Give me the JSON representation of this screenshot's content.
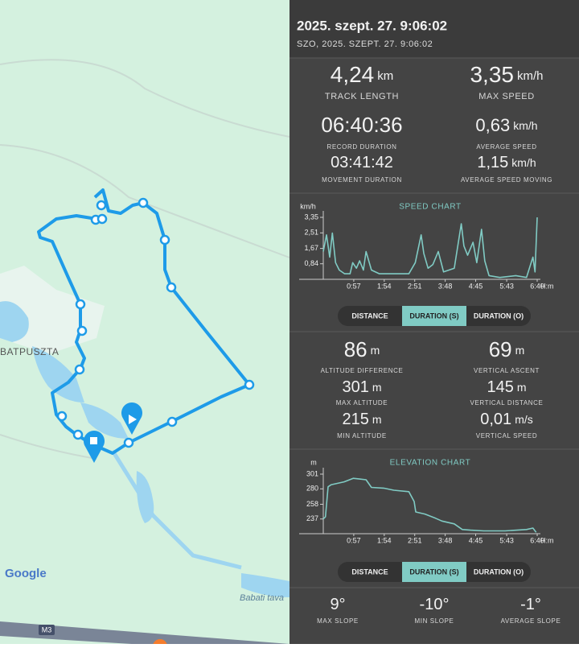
{
  "map": {
    "place_label": "BATPUSZTA",
    "lake_label": "Babati tava",
    "road_label": "M3",
    "attribution": "Google"
  },
  "header": {
    "title": "2025. szept. 27. 9:06:02",
    "subtitle": "SZO, 2025. SZEPT. 27. 9:06:02"
  },
  "stats": [
    {
      "value": "4,24",
      "unit": "km",
      "label": "TRACK LENGTH"
    },
    {
      "value": "3,35",
      "unit": "km/h",
      "label": "MAX SPEED"
    },
    {
      "value": "06:40:36",
      "label": "RECORD DURATION"
    },
    {
      "value": "0,63",
      "unit": "km/h",
      "label": "AVERAGE SPEED"
    },
    {
      "value": "03:41:42",
      "label": "MOVEMENT DURATION"
    },
    {
      "value": "1,15",
      "unit": "km/h",
      "label": "AVERAGE SPEED MOVING"
    }
  ],
  "speed_chart": {
    "type": "line",
    "title": "SPEED CHART",
    "y_unit": "km/h",
    "x_unit": "H:m",
    "color": "#80cbc4",
    "x": [
      0,
      6,
      12,
      17,
      23,
      30,
      40,
      50,
      55,
      62,
      68,
      75,
      80,
      90,
      105,
      125,
      160,
      172,
      183,
      188,
      196,
      205,
      215,
      225,
      245,
      258,
      263,
      270,
      280,
      287,
      296,
      302,
      310,
      330,
      360,
      380,
      392,
      396,
      400
    ],
    "values": [
      1.5,
      2.4,
      1.2,
      2.5,
      0.9,
      0.5,
      0.3,
      0.3,
      0.9,
      0.6,
      1.0,
      0.5,
      1.5,
      0.5,
      0.3,
      0.3,
      0.3,
      0.9,
      2.4,
      1.4,
      0.6,
      0.8,
      1.5,
      0.4,
      0.6,
      3.0,
      1.8,
      1.3,
      2.0,
      0.9,
      2.7,
      1.0,
      0.2,
      0.1,
      0.2,
      0.1,
      1.2,
      0.4,
      3.35
    ],
    "xlim": [
      0,
      400
    ],
    "ylim": [
      0,
      3.35
    ],
    "yticks": [
      {
        "value": 3.35,
        "label": "3,35"
      },
      {
        "value": 2.51,
        "label": "2,51"
      },
      {
        "value": 1.67,
        "label": "1,67"
      },
      {
        "value": 0.84,
        "label": "0,84"
      }
    ],
    "xticks": [
      {
        "value": 57,
        "label": "0:57"
      },
      {
        "value": 114,
        "label": "1:54"
      },
      {
        "value": 171,
        "label": "2:51"
      },
      {
        "value": 228,
        "label": "3:48"
      },
      {
        "value": 285,
        "label": "4:45"
      },
      {
        "value": 343,
        "label": "5:43"
      },
      {
        "value": 400,
        "label": "6:40"
      }
    ]
  },
  "tabs_1": [
    "DISTANCE",
    "DURATION (S)",
    "DURATION (O)"
  ],
  "elevation_stats": [
    {
      "value": "86",
      "unit": "m",
      "label": "ALTITUDE DIFFERENCE"
    },
    {
      "value": "69",
      "unit": "m",
      "label": "VERTICAL ASCENT"
    },
    {
      "value": "301",
      "unit": "m",
      "label": "MAX ALTITUDE"
    },
    {
      "value": "145",
      "unit": "m",
      "label": "VERTICAL DISTANCE"
    },
    {
      "value": "215",
      "unit": "m",
      "label": "MIN ALTITUDE"
    },
    {
      "value": "0,01",
      "unit": "m/s",
      "label": "VERTICAL SPEED"
    }
  ],
  "elevation_chart": {
    "type": "line",
    "title": "ELEVATION CHART",
    "y_unit": "m",
    "x_unit": "H:m",
    "color": "#80cbc4",
    "x": [
      0,
      4,
      9,
      15,
      39,
      56,
      68,
      80,
      90,
      113,
      132,
      160,
      170,
      173,
      190,
      210,
      222,
      245,
      260,
      275,
      300,
      340,
      380,
      392,
      398
    ],
    "values": [
      237,
      240,
      283,
      286,
      290,
      295,
      294,
      293,
      282,
      281,
      278,
      276,
      262,
      247,
      244,
      238,
      234,
      230,
      222,
      221,
      220,
      220,
      222,
      224,
      218
    ],
    "xlim": [
      0,
      400
    ],
    "ylim": [
      216,
      301
    ],
    "yticks": [
      301,
      280,
      258,
      237
    ],
    "xticks": [
      {
        "value": 57,
        "label": "0:57"
      },
      {
        "value": 114,
        "label": "1:54"
      },
      {
        "value": 171,
        "label": "2:51"
      },
      {
        "value": 228,
        "label": "3:48"
      },
      {
        "value": 285,
        "label": "4:45"
      },
      {
        "value": 343,
        "label": "5:43"
      },
      {
        "value": 400,
        "label": "6:40"
      }
    ]
  },
  "tabs_2": [
    "DISTANCE",
    "DURATION (S)",
    "DURATION (O)"
  ],
  "slope_stats": [
    {
      "value": "9°",
      "label": "MAX SLOPE"
    },
    {
      "value": "-10°",
      "label": "MIN SLOPE"
    },
    {
      "value": "-1°",
      "label": "AVERAGE SLOPE"
    }
  ]
}
